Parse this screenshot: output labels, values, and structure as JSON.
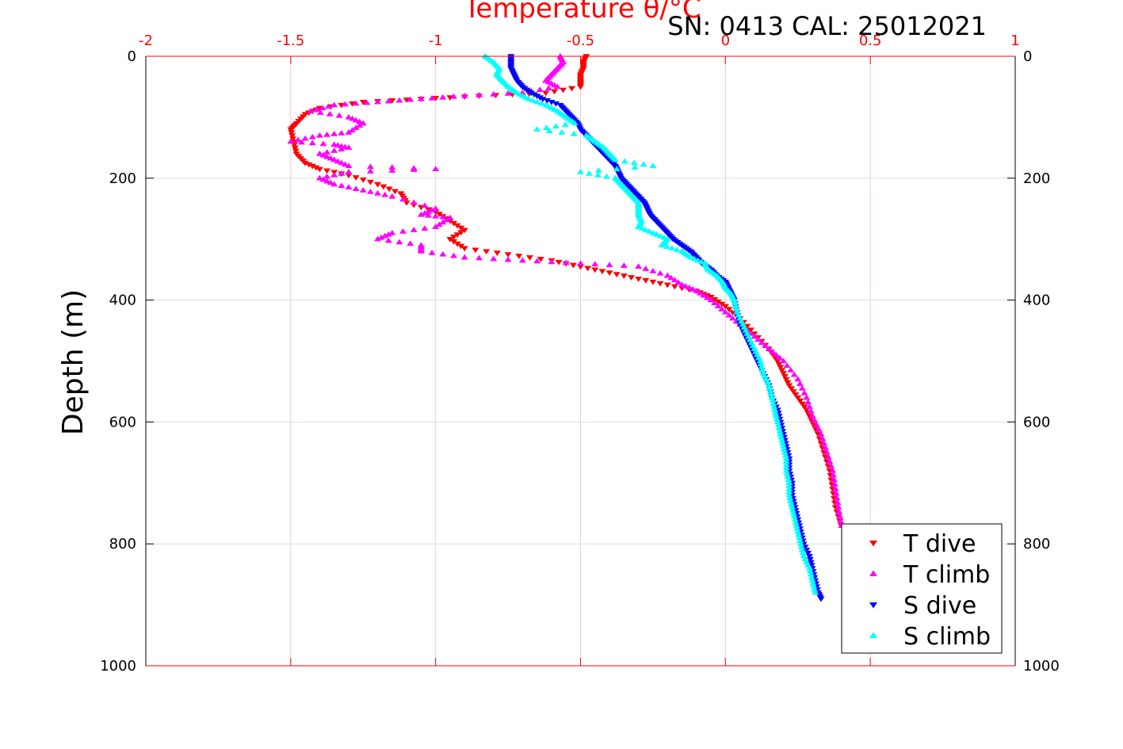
{
  "chart_data": {
    "type": "scatter",
    "title": "Temperature θ/°C",
    "subtitle": "SN: 0413  CAL: 25012021",
    "xlabel": "Temperature θ/°C",
    "ylabel": "Depth (m)",
    "xlim": [
      -2,
      1
    ],
    "ylim": [
      0,
      1000
    ],
    "y_inverted": true,
    "x_ticks": [
      "-2",
      "-1.5",
      "-1",
      "-0.5",
      "0",
      "0.5",
      "1"
    ],
    "x_tick_values": [
      -2,
      -1.5,
      -1,
      -0.5,
      0,
      0.5,
      1
    ],
    "y_ticks": [
      "0",
      "200",
      "400",
      "600",
      "800",
      "1000"
    ],
    "y_tick_values": [
      0,
      200,
      400,
      600,
      800,
      1000
    ],
    "grid": true,
    "legend_position": "bottom-right",
    "series": [
      {
        "name": "T dive",
        "color": "#ff0000",
        "marker": "triangle-down",
        "points": [
          [
            -0.48,
            0
          ],
          [
            -0.49,
            10
          ],
          [
            -0.49,
            20
          ],
          [
            -0.5,
            30
          ],
          [
            -0.5,
            40
          ],
          [
            -0.5,
            50
          ],
          [
            -0.62,
            60
          ],
          [
            -0.85,
            65
          ],
          [
            -1.05,
            70
          ],
          [
            -1.25,
            75
          ],
          [
            -1.4,
            85
          ],
          [
            -1.45,
            95
          ],
          [
            -1.48,
            110
          ],
          [
            -1.5,
            120
          ],
          [
            -1.49,
            140
          ],
          [
            -1.48,
            160
          ],
          [
            -1.45,
            175
          ],
          [
            -1.4,
            185
          ],
          [
            -1.3,
            195
          ],
          [
            -1.2,
            210
          ],
          [
            -1.12,
            225
          ],
          [
            -1.1,
            240
          ],
          [
            -1.0,
            255
          ],
          [
            -0.95,
            270
          ],
          [
            -0.9,
            285
          ],
          [
            -0.95,
            300
          ],
          [
            -0.9,
            315
          ],
          [
            -0.75,
            325
          ],
          [
            -0.6,
            335
          ],
          [
            -0.5,
            345
          ],
          [
            -0.4,
            355
          ],
          [
            -0.3,
            365
          ],
          [
            -0.2,
            375
          ],
          [
            -0.1,
            385
          ],
          [
            -0.05,
            395
          ],
          [
            0.0,
            410
          ],
          [
            0.05,
            430
          ],
          [
            0.1,
            455
          ],
          [
            0.15,
            480
          ],
          [
            0.18,
            500
          ],
          [
            0.2,
            520
          ],
          [
            0.22,
            540
          ],
          [
            0.25,
            560
          ],
          [
            0.28,
            580
          ],
          [
            0.3,
            600
          ],
          [
            0.32,
            620
          ],
          [
            0.34,
            650
          ],
          [
            0.36,
            680
          ],
          [
            0.37,
            710
          ],
          [
            0.38,
            740
          ],
          [
            0.4,
            770
          ]
        ]
      },
      {
        "name": "T climb",
        "color": "#ff00ff",
        "marker": "triangle-up",
        "points": [
          [
            -0.57,
            0
          ],
          [
            -0.56,
            10
          ],
          [
            -0.58,
            20
          ],
          [
            -0.6,
            30
          ],
          [
            -0.62,
            40
          ],
          [
            -0.58,
            50
          ],
          [
            -0.7,
            60
          ],
          [
            -0.9,
            65
          ],
          [
            -1.05,
            70
          ],
          [
            -1.2,
            75
          ],
          [
            -1.35,
            80
          ],
          [
            -1.43,
            90
          ],
          [
            -1.3,
            100
          ],
          [
            -1.25,
            110
          ],
          [
            -1.3,
            125
          ],
          [
            -1.4,
            130
          ],
          [
            -1.5,
            140
          ],
          [
            -1.35,
            145
          ],
          [
            -1.3,
            150
          ],
          [
            -1.4,
            160
          ],
          [
            -1.35,
            170
          ],
          [
            -1.3,
            180
          ],
          [
            -1.0,
            185
          ],
          [
            -1.3,
            190
          ],
          [
            -1.4,
            200
          ],
          [
            -1.35,
            210
          ],
          [
            -1.25,
            220
          ],
          [
            -1.15,
            230
          ],
          [
            -1.0,
            250
          ],
          [
            -1.05,
            260
          ],
          [
            -0.95,
            265
          ],
          [
            -1.0,
            280
          ],
          [
            -1.15,
            290
          ],
          [
            -1.2,
            300
          ],
          [
            -1.05,
            310
          ],
          [
            -1.05,
            320
          ],
          [
            -0.9,
            330
          ],
          [
            -0.7,
            335
          ],
          [
            -0.5,
            340
          ],
          [
            -0.3,
            345
          ],
          [
            -0.2,
            360
          ],
          [
            -0.15,
            375
          ],
          [
            -0.1,
            385
          ],
          [
            -0.05,
            400
          ],
          [
            0.0,
            420
          ],
          [
            0.05,
            440
          ],
          [
            0.1,
            460
          ],
          [
            0.15,
            480
          ],
          [
            0.2,
            500
          ],
          [
            0.25,
            530
          ],
          [
            0.28,
            560
          ],
          [
            0.3,
            590
          ],
          [
            0.33,
            620
          ],
          [
            0.35,
            650
          ],
          [
            0.37,
            680
          ],
          [
            0.38,
            710
          ],
          [
            0.39,
            740
          ],
          [
            0.4,
            770
          ]
        ]
      },
      {
        "name": "S dive",
        "color": "#0000ff",
        "marker": "triangle-down",
        "points": [
          [
            -0.74,
            0
          ],
          [
            -0.74,
            10
          ],
          [
            -0.74,
            20
          ],
          [
            -0.73,
            30
          ],
          [
            -0.72,
            40
          ],
          [
            -0.7,
            50
          ],
          [
            -0.67,
            60
          ],
          [
            -0.63,
            70
          ],
          [
            -0.57,
            80
          ],
          [
            -0.55,
            90
          ],
          [
            -0.53,
            100
          ],
          [
            -0.51,
            110
          ],
          [
            -0.5,
            120
          ],
          [
            -0.48,
            130
          ],
          [
            -0.46,
            140
          ],
          [
            -0.44,
            150
          ],
          [
            -0.42,
            160
          ],
          [
            -0.4,
            170
          ],
          [
            -0.38,
            180
          ],
          [
            -0.37,
            190
          ],
          [
            -0.36,
            200
          ],
          [
            -0.34,
            210
          ],
          [
            -0.32,
            220
          ],
          [
            -0.3,
            230
          ],
          [
            -0.28,
            240
          ],
          [
            -0.27,
            250
          ],
          [
            -0.26,
            260
          ],
          [
            -0.24,
            270
          ],
          [
            -0.22,
            280
          ],
          [
            -0.2,
            290
          ],
          [
            -0.18,
            300
          ],
          [
            -0.15,
            310
          ],
          [
            -0.12,
            320
          ],
          [
            -0.1,
            330
          ],
          [
            -0.08,
            340
          ],
          [
            -0.05,
            350
          ],
          [
            -0.03,
            360
          ],
          [
            0.0,
            370
          ],
          [
            0.01,
            380
          ],
          [
            0.02,
            390
          ],
          [
            0.03,
            400
          ],
          [
            0.04,
            420
          ],
          [
            0.05,
            440
          ],
          [
            0.07,
            460
          ],
          [
            0.09,
            480
          ],
          [
            0.11,
            500
          ],
          [
            0.13,
            520
          ],
          [
            0.15,
            540
          ],
          [
            0.16,
            560
          ],
          [
            0.18,
            580
          ],
          [
            0.19,
            600
          ],
          [
            0.2,
            620
          ],
          [
            0.21,
            640
          ],
          [
            0.22,
            660
          ],
          [
            0.22,
            680
          ],
          [
            0.23,
            700
          ],
          [
            0.23,
            720
          ],
          [
            0.24,
            740
          ],
          [
            0.25,
            760
          ],
          [
            0.26,
            780
          ],
          [
            0.27,
            800
          ],
          [
            0.29,
            820
          ],
          [
            0.3,
            840
          ],
          [
            0.31,
            860
          ],
          [
            0.32,
            880
          ],
          [
            0.33,
            890
          ]
        ]
      },
      {
        "name": "S climb",
        "color": "#00ffff",
        "marker": "triangle-up",
        "points": [
          [
            -0.83,
            0
          ],
          [
            -0.8,
            10
          ],
          [
            -0.78,
            20
          ],
          [
            -0.79,
            30
          ],
          [
            -0.77,
            40
          ],
          [
            -0.75,
            50
          ],
          [
            -0.72,
            60
          ],
          [
            -0.68,
            70
          ],
          [
            -0.62,
            80
          ],
          [
            -0.58,
            90
          ],
          [
            -0.55,
            100
          ],
          [
            -0.52,
            110
          ],
          [
            -0.65,
            120
          ],
          [
            -0.48,
            130
          ],
          [
            -0.45,
            140
          ],
          [
            -0.42,
            150
          ],
          [
            -0.4,
            160
          ],
          [
            -0.38,
            170
          ],
          [
            -0.25,
            180
          ],
          [
            -0.5,
            190
          ],
          [
            -0.38,
            200
          ],
          [
            -0.36,
            210
          ],
          [
            -0.34,
            220
          ],
          [
            -0.32,
            230
          ],
          [
            -0.3,
            240
          ],
          [
            -0.3,
            250
          ],
          [
            -0.3,
            260
          ],
          [
            -0.29,
            270
          ],
          [
            -0.3,
            280
          ],
          [
            -0.25,
            290
          ],
          [
            -0.2,
            300
          ],
          [
            -0.22,
            310
          ],
          [
            -0.15,
            320
          ],
          [
            -0.12,
            330
          ],
          [
            -0.07,
            340
          ],
          [
            -0.06,
            350
          ],
          [
            -0.03,
            360
          ],
          [
            -0.01,
            370
          ],
          [
            0.0,
            380
          ],
          [
            0.02,
            390
          ],
          [
            0.03,
            400
          ],
          [
            0.04,
            420
          ],
          [
            0.06,
            440
          ],
          [
            0.08,
            460
          ],
          [
            0.1,
            480
          ],
          [
            0.12,
            500
          ],
          [
            0.13,
            520
          ],
          [
            0.15,
            540
          ],
          [
            0.16,
            560
          ],
          [
            0.17,
            580
          ],
          [
            0.18,
            600
          ],
          [
            0.19,
            620
          ],
          [
            0.2,
            640
          ],
          [
            0.21,
            660
          ],
          [
            0.21,
            680
          ],
          [
            0.22,
            700
          ],
          [
            0.22,
            720
          ],
          [
            0.23,
            740
          ],
          [
            0.24,
            760
          ],
          [
            0.25,
            780
          ],
          [
            0.26,
            800
          ],
          [
            0.27,
            820
          ],
          [
            0.29,
            840
          ],
          [
            0.3,
            860
          ],
          [
            0.31,
            880
          ]
        ]
      }
    ]
  }
}
